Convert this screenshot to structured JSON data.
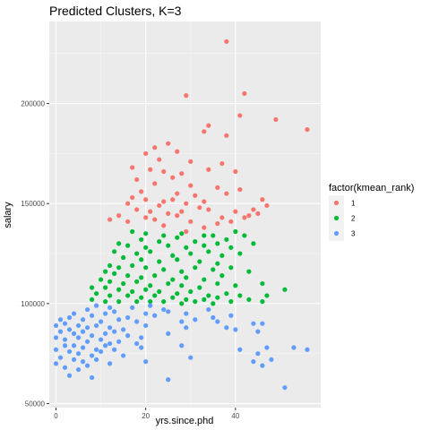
{
  "chart_data": {
    "type": "scatter",
    "title": "Predicted Clusters, K=3",
    "xlabel": "yrs.since.phd",
    "ylabel": "salary",
    "xlim": [
      -1.5,
      59
    ],
    "ylim": [
      48000,
      241000
    ],
    "xticks": [
      0,
      20,
      40
    ],
    "xtick_labels": [
      "0",
      "20",
      "40"
    ],
    "yticks": [
      50000,
      100000,
      150000,
      200000
    ],
    "ytick_labels": [
      "50000",
      "100000",
      "150000",
      "200000"
    ],
    "grid": true,
    "panel_background": "#ebebeb",
    "legend": {
      "title": "factor(kmean_rank)",
      "placement": "right",
      "entries": [
        "1",
        "2",
        "3"
      ]
    },
    "series": [
      {
        "name": "1",
        "color": "#f8766d",
        "points": [
          [
            38,
            231000
          ],
          [
            29,
            204000
          ],
          [
            42,
            205000
          ],
          [
            41,
            194000
          ],
          [
            49,
            192000
          ],
          [
            56,
            187000
          ],
          [
            34,
            189000
          ],
          [
            33,
            186000
          ],
          [
            38,
            184000
          ],
          [
            25,
            180000
          ],
          [
            22,
            178000
          ],
          [
            27,
            176000
          ],
          [
            20,
            175000
          ],
          [
            23,
            172000
          ],
          [
            30,
            171000
          ],
          [
            37,
            170000
          ],
          [
            17,
            168000
          ],
          [
            21,
            167000
          ],
          [
            24,
            166000
          ],
          [
            28,
            165000
          ],
          [
            34,
            167000
          ],
          [
            40,
            166000
          ],
          [
            26,
            163000
          ],
          [
            18,
            162000
          ],
          [
            22,
            160000
          ],
          [
            30,
            159000
          ],
          [
            36,
            158000
          ],
          [
            19,
            156000
          ],
          [
            27,
            155000
          ],
          [
            31,
            154000
          ],
          [
            38,
            155000
          ],
          [
            41,
            157000
          ],
          [
            17,
            153000
          ],
          [
            20,
            152000
          ],
          [
            24,
            151000
          ],
          [
            26,
            152000
          ],
          [
            29,
            150000
          ],
          [
            33,
            151000
          ],
          [
            46,
            152000
          ],
          [
            16,
            150000
          ],
          [
            23,
            149000
          ],
          [
            32,
            148000
          ],
          [
            18,
            147000
          ],
          [
            21,
            146000
          ],
          [
            25,
            145000
          ],
          [
            28,
            146000
          ],
          [
            34,
            147000
          ],
          [
            40,
            146000
          ],
          [
            44,
            147000
          ],
          [
            47,
            149000
          ],
          [
            14,
            144000
          ],
          [
            20,
            143000
          ],
          [
            27,
            144000
          ],
          [
            37,
            143000
          ],
          [
            42,
            143000
          ],
          [
            45,
            145000
          ],
          [
            12,
            142000
          ],
          [
            16,
            141000
          ],
          [
            22,
            142000
          ],
          [
            30,
            141000
          ],
          [
            36,
            140000
          ],
          [
            39,
            141000
          ],
          [
            43,
            144000
          ],
          [
            24,
            139000
          ],
          [
            33,
            138000
          ],
          [
            29,
            136000
          ]
        ]
      },
      {
        "name": "2",
        "color": "#00ba38",
        "points": [
          [
            17,
            136000
          ],
          [
            20,
            135000
          ],
          [
            24,
            134000
          ],
          [
            28,
            135000
          ],
          [
            33,
            134000
          ],
          [
            35,
            134000
          ],
          [
            40,
            136000
          ],
          [
            42,
            134000
          ],
          [
            19,
            132000
          ],
          [
            23,
            131000
          ],
          [
            27,
            133000
          ],
          [
            31,
            131000
          ],
          [
            38,
            132000
          ],
          [
            14,
            130000
          ],
          [
            16,
            129000
          ],
          [
            20,
            128000
          ],
          [
            25,
            129000
          ],
          [
            29,
            128000
          ],
          [
            33,
            129000
          ],
          [
            36,
            130000
          ],
          [
            39,
            128000
          ],
          [
            44,
            130000
          ],
          [
            13,
            126000
          ],
          [
            18,
            125000
          ],
          [
            21,
            126000
          ],
          [
            26,
            124000
          ],
          [
            30,
            125000
          ],
          [
            34,
            126000
          ],
          [
            37,
            124000
          ],
          [
            41,
            125000
          ],
          [
            15,
            123000
          ],
          [
            19,
            122000
          ],
          [
            23,
            121000
          ],
          [
            27,
            122000
          ],
          [
            32,
            121000
          ],
          [
            36,
            120000
          ],
          [
            12,
            119000
          ],
          [
            14,
            118000
          ],
          [
            17,
            119000
          ],
          [
            20,
            118000
          ],
          [
            24,
            117000
          ],
          [
            28,
            116000
          ],
          [
            31,
            118000
          ],
          [
            35,
            117000
          ],
          [
            39,
            118000
          ],
          [
            43,
            116000
          ],
          [
            11,
            116000
          ],
          [
            13,
            115000
          ],
          [
            16,
            114000
          ],
          [
            19,
            113000
          ],
          [
            22,
            114000
          ],
          [
            26,
            112000
          ],
          [
            29,
            113000
          ],
          [
            33,
            112000
          ],
          [
            37,
            114000
          ],
          [
            10,
            112000
          ],
          [
            12,
            111000
          ],
          [
            15,
            110000
          ],
          [
            18,
            111000
          ],
          [
            21,
            109000
          ],
          [
            25,
            110000
          ],
          [
            28,
            109000
          ],
          [
            32,
            108000
          ],
          [
            36,
            110000
          ],
          [
            40,
            109000
          ],
          [
            46,
            110000
          ],
          [
            8,
            108000
          ],
          [
            11,
            108000
          ],
          [
            14,
            107000
          ],
          [
            17,
            106000
          ],
          [
            20,
            107000
          ],
          [
            23,
            106000
          ],
          [
            27,
            105000
          ],
          [
            30,
            106000
          ],
          [
            34,
            104000
          ],
          [
            38,
            105000
          ],
          [
            51,
            107000
          ],
          [
            9,
            105000
          ],
          [
            12,
            104000
          ],
          [
            16,
            104000
          ],
          [
            19,
            103000
          ],
          [
            22,
            104000
          ],
          [
            26,
            103000
          ],
          [
            29,
            102000
          ],
          [
            33,
            102000
          ],
          [
            36,
            103000
          ],
          [
            41,
            104000
          ],
          [
            47,
            104000
          ],
          [
            8,
            102000
          ],
          [
            11,
            101000
          ],
          [
            14,
            101000
          ],
          [
            18,
            101000
          ],
          [
            21,
            101000
          ],
          [
            24,
            101000
          ],
          [
            28,
            100000
          ],
          [
            31,
            101000
          ],
          [
            35,
            100000
          ],
          [
            39,
            101000
          ],
          [
            43,
            102000
          ],
          [
            46,
            101000
          ]
        ]
      },
      {
        "name": "3",
        "color": "#619cff",
        "points": [
          [
            9,
            99000
          ],
          [
            12,
            98000
          ],
          [
            17,
            98000
          ],
          [
            21,
            99000
          ],
          [
            24,
            97000
          ],
          [
            13,
            96000
          ],
          [
            7,
            97000
          ],
          [
            20,
            95000
          ],
          [
            25,
            96000
          ],
          [
            29,
            95000
          ],
          [
            34,
            97000
          ],
          [
            4,
            95000
          ],
          [
            8,
            94000
          ],
          [
            11,
            95000
          ],
          [
            16,
            93000
          ],
          [
            22,
            94000
          ],
          [
            35,
            93000
          ],
          [
            39,
            94000
          ],
          [
            1,
            92000
          ],
          [
            3,
            93000
          ],
          [
            6,
            92000
          ],
          [
            10,
            91000
          ],
          [
            14,
            92000
          ],
          [
            18,
            91000
          ],
          [
            28,
            91000
          ],
          [
            31,
            92000
          ],
          [
            36,
            91000
          ],
          [
            44,
            90000
          ],
          [
            46,
            90000
          ],
          [
            0,
            89000
          ],
          [
            2,
            90000
          ],
          [
            5,
            89000
          ],
          [
            7,
            88000
          ],
          [
            9,
            89000
          ],
          [
            12,
            88000
          ],
          [
            15,
            87000
          ],
          [
            20,
            89000
          ],
          [
            29,
            88000
          ],
          [
            38,
            88000
          ],
          [
            40,
            87000
          ],
          [
            1,
            86000
          ],
          [
            3,
            87000
          ],
          [
            4,
            85000
          ],
          [
            6,
            86000
          ],
          [
            8,
            84000
          ],
          [
            11,
            85000
          ],
          [
            13,
            86000
          ],
          [
            16,
            84000
          ],
          [
            19,
            83000
          ],
          [
            25,
            85000
          ],
          [
            45,
            86000
          ],
          [
            0,
            83000
          ],
          [
            2,
            82000
          ],
          [
            5,
            83000
          ],
          [
            7,
            81000
          ],
          [
            10,
            82000
          ],
          [
            12,
            80000
          ],
          [
            14,
            81000
          ],
          [
            18,
            80000
          ],
          [
            2,
            79000
          ],
          [
            4,
            79000
          ],
          [
            6,
            78000
          ],
          [
            9,
            77000
          ],
          [
            11,
            79000
          ],
          [
            13,
            77000
          ],
          [
            19,
            78000
          ],
          [
            28,
            79000
          ],
          [
            0,
            77000
          ],
          [
            3,
            76000
          ],
          [
            5,
            75000
          ],
          [
            8,
            74000
          ],
          [
            10,
            76000
          ],
          [
            15,
            74000
          ],
          [
            41,
            77000
          ],
          [
            47,
            78000
          ],
          [
            53,
            78000
          ],
          [
            56,
            77000
          ],
          [
            1,
            73000
          ],
          [
            4,
            72000
          ],
          [
            6,
            71000
          ],
          [
            9,
            72000
          ],
          [
            12,
            70000
          ],
          [
            20,
            71000
          ],
          [
            30,
            73000
          ],
          [
            45,
            75000
          ],
          [
            48,
            72000
          ],
          [
            0,
            70000
          ],
          [
            2,
            68000
          ],
          [
            5,
            67000
          ],
          [
            7,
            69000
          ],
          [
            3,
            64000
          ],
          [
            8,
            63000
          ],
          [
            25,
            62000
          ],
          [
            46,
            69000
          ],
          [
            44,
            71000
          ],
          [
            51,
            58000
          ]
        ]
      }
    ]
  }
}
